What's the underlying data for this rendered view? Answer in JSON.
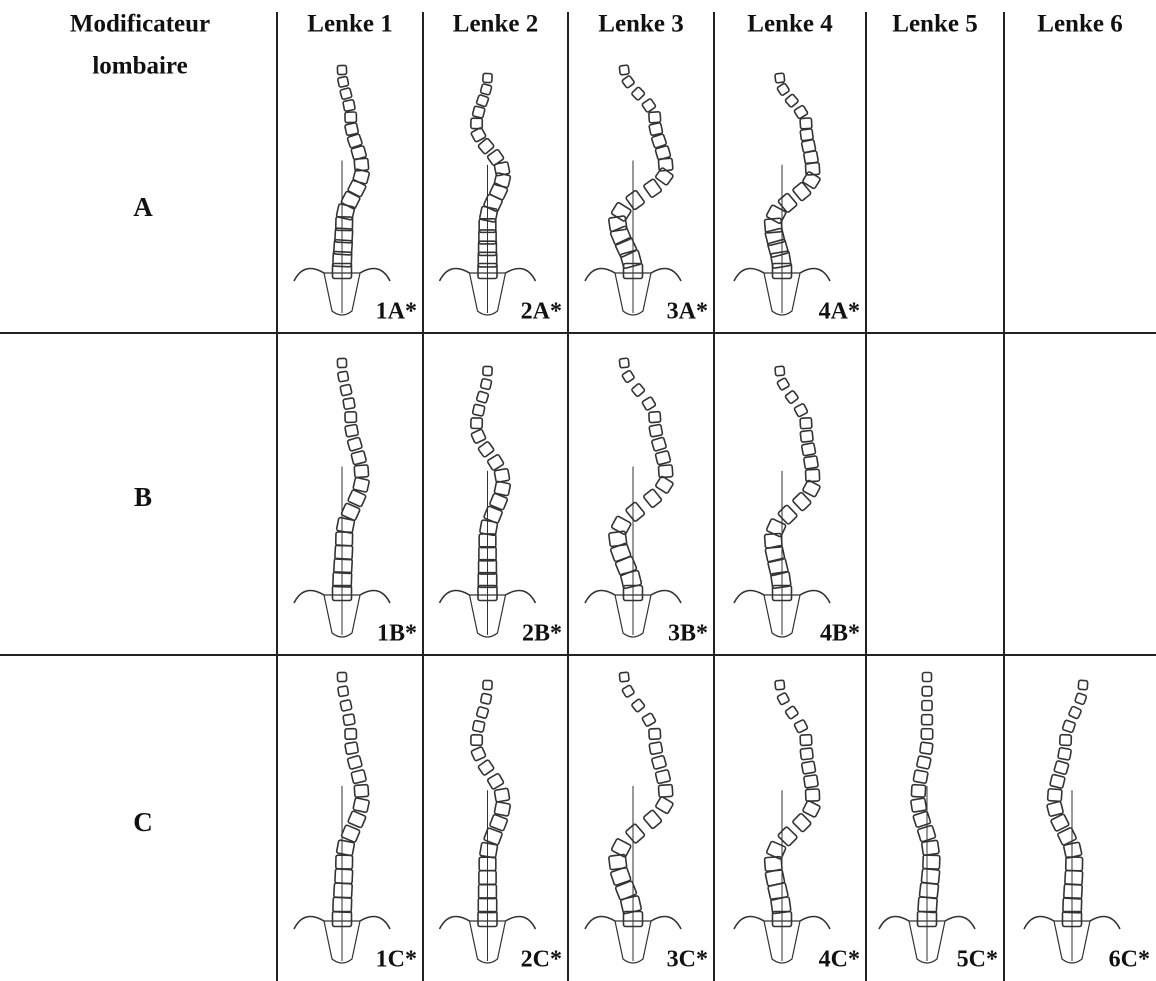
{
  "header": {
    "corner": [
      "Modificateur",
      "lombaire"
    ],
    "columns": [
      "Lenke 1",
      "Lenke 2",
      "Lenke 3",
      "Lenke 4",
      "Lenke 5",
      "Lenke 6"
    ]
  },
  "rows": [
    {
      "label": "A",
      "cells": [
        "1A*",
        "2A*",
        "3A*",
        "4A*"
      ]
    },
    {
      "label": "B",
      "cells": [
        "1B*",
        "2B*",
        "3B*",
        "4B*"
      ]
    },
    {
      "label": "C",
      "cells": [
        "1C*",
        "2C*",
        "3C*",
        "4C*",
        "5C*",
        "6C*"
      ]
    }
  ]
}
